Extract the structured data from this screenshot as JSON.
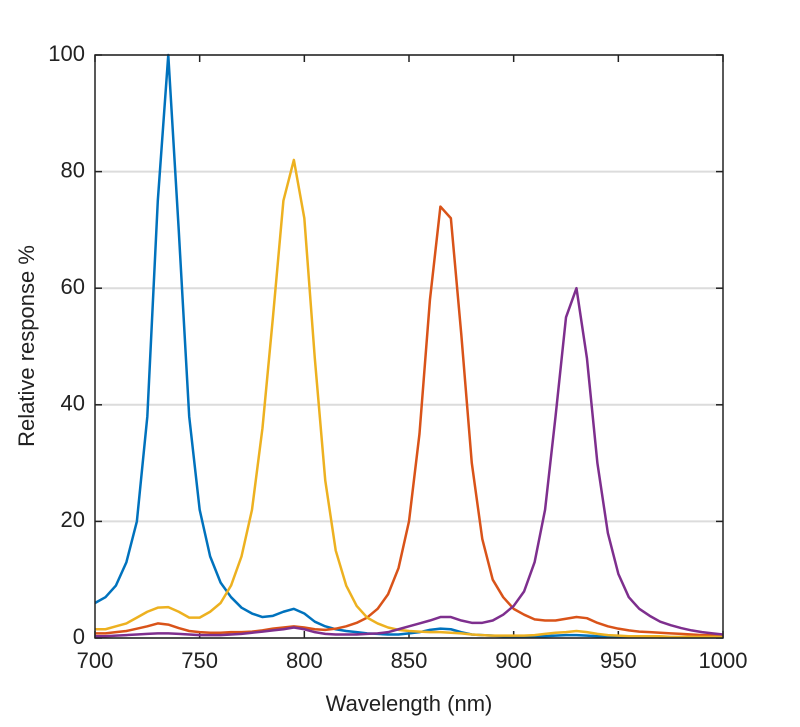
{
  "chart_data": {
    "type": "line",
    "xlabel": "Wavelength (nm)",
    "ylabel": "Relative response %",
    "x": [
      700,
      705,
      710,
      715,
      720,
      725,
      730,
      735,
      740,
      745,
      750,
      755,
      760,
      765,
      770,
      775,
      780,
      785,
      790,
      795,
      800,
      805,
      810,
      815,
      820,
      825,
      830,
      835,
      840,
      845,
      850,
      855,
      860,
      865,
      870,
      875,
      880,
      885,
      890,
      895,
      900,
      905,
      910,
      915,
      920,
      925,
      930,
      935,
      940,
      945,
      950,
      955,
      960,
      965,
      970,
      975,
      980,
      985,
      990,
      995,
      1000
    ],
    "series": [
      {
        "color": "#0072bd",
        "values": [
          6,
          7,
          9,
          13,
          20,
          38,
          75,
          100,
          70,
          38,
          22,
          14,
          9.5,
          7,
          5.2,
          4.2,
          3.6,
          3.8,
          4.5,
          5,
          4.2,
          2.8,
          2,
          1.5,
          1.2,
          1,
          0.8,
          0.7,
          0.6,
          0.6,
          0.8,
          1,
          1.4,
          1.6,
          1.5,
          1,
          0.6,
          0.5,
          0.4,
          0.3,
          0.3,
          0.3,
          0.3,
          0.3,
          0.4,
          0.5,
          0.5,
          0.4,
          0.3,
          0.2,
          0.2,
          0.2,
          0.2,
          0.2,
          0.1,
          0.1,
          0.1,
          0.1,
          0.1,
          0.1,
          0.1
        ]
      },
      {
        "color": "#d95319",
        "values": [
          0.8,
          0.8,
          1,
          1.2,
          1.6,
          2,
          2.5,
          2.3,
          1.7,
          1.2,
          1,
          0.9,
          0.9,
          1,
          1,
          1.1,
          1.3,
          1.6,
          1.8,
          2,
          1.8,
          1.5,
          1.4,
          1.6,
          2,
          2.6,
          3.5,
          5,
          7.5,
          12,
          20,
          35,
          58,
          74,
          72,
          52,
          30,
          17,
          10,
          7,
          5,
          4,
          3.2,
          3,
          3,
          3.3,
          3.6,
          3.4,
          2.6,
          2,
          1.6,
          1.3,
          1.1,
          1,
          0.9,
          0.8,
          0.7,
          0.6,
          0.5,
          0.5,
          0.4
        ]
      },
      {
        "color": "#edb120",
        "values": [
          1.5,
          1.5,
          2,
          2.5,
          3.5,
          4.5,
          5.2,
          5.3,
          4.5,
          3.5,
          3.5,
          4.5,
          6,
          9,
          14,
          22,
          36,
          55,
          75,
          82,
          72,
          48,
          27,
          15,
          9,
          5.5,
          3.5,
          2.5,
          1.8,
          1.4,
          1.2,
          1.1,
          1,
          1,
          0.9,
          0.8,
          0.6,
          0.5,
          0.4,
          0.4,
          0.4,
          0.4,
          0.5,
          0.7,
          0.9,
          1,
          1.2,
          1,
          0.7,
          0.5,
          0.4,
          0.3,
          0.3,
          0.3,
          0.3,
          0.2,
          0.2,
          0.2,
          0.2,
          0.2,
          0.2
        ]
      },
      {
        "color": "#7e2f8e",
        "values": [
          0.3,
          0.3,
          0.4,
          0.5,
          0.6,
          0.7,
          0.8,
          0.8,
          0.7,
          0.6,
          0.5,
          0.5,
          0.5,
          0.6,
          0.7,
          0.9,
          1.1,
          1.3,
          1.5,
          1.8,
          1.5,
          1,
          0.7,
          0.6,
          0.6,
          0.6,
          0.7,
          0.8,
          1,
          1.5,
          2,
          2.5,
          3,
          3.6,
          3.6,
          3,
          2.6,
          2.6,
          3,
          4,
          5.5,
          8,
          13,
          22,
          38,
          55,
          60,
          48,
          30,
          18,
          11,
          7,
          5,
          3.8,
          2.8,
          2.2,
          1.7,
          1.3,
          1,
          0.8,
          0.6
        ]
      }
    ],
    "xlim": [
      700,
      1000
    ],
    "xticks": [
      700,
      750,
      800,
      850,
      900,
      950,
      1000
    ],
    "ylim": [
      0,
      100
    ],
    "yticks": [
      0,
      20,
      40,
      60,
      80,
      100
    ],
    "grid": true
  }
}
